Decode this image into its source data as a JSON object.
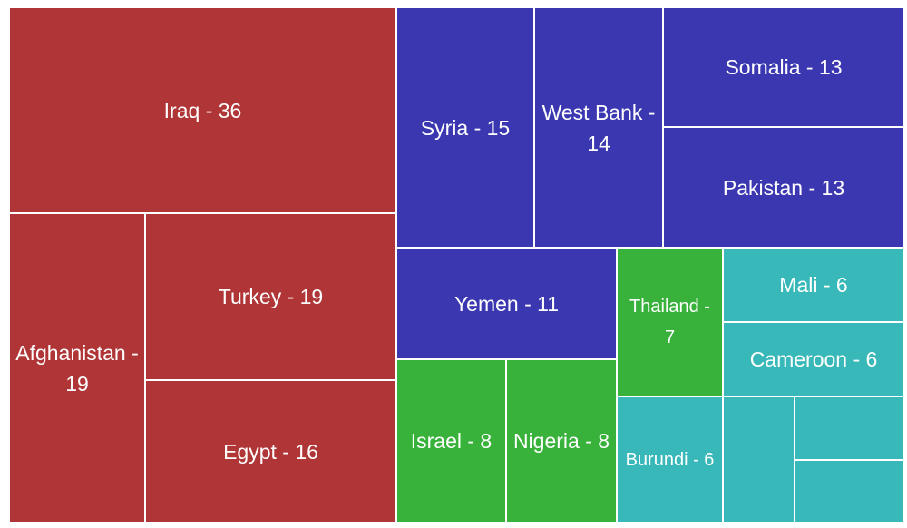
{
  "chart_data": {
    "type": "treemap",
    "values": [
      36,
      19,
      19,
      16,
      15,
      14,
      13,
      13,
      11,
      8,
      8,
      7,
      6,
      6,
      6,
      4,
      3,
      3
    ],
    "value_labels": [
      "Iraq - 36",
      "Afghanistan - 19",
      "Turkey - 19",
      "Egypt - 16",
      "Syria - 15",
      "West Bank - 14",
      "Somalia - 13",
      "Pakistan - 13",
      "Yemen - 11",
      "Israel - 8",
      "Nigeria - 8",
      "Thailand - 7",
      "Mali - 6",
      "Cameroon - 6",
      "Burundi - 6",
      null,
      null,
      null
    ],
    "colors": [
      "#b03536",
      "#b03536",
      "#b03536",
      "#b03536",
      "#3a37b1",
      "#3a37b1",
      "#3a37b1",
      "#3a37b1",
      "#3a37b1",
      "#38b23b",
      "#38b23b",
      "#38b23b",
      "#38b8b8",
      "#38b8b8",
      "#38b8b8",
      "#38b8b8",
      "#38b8b8",
      "#38b8b8"
    ]
  }
}
